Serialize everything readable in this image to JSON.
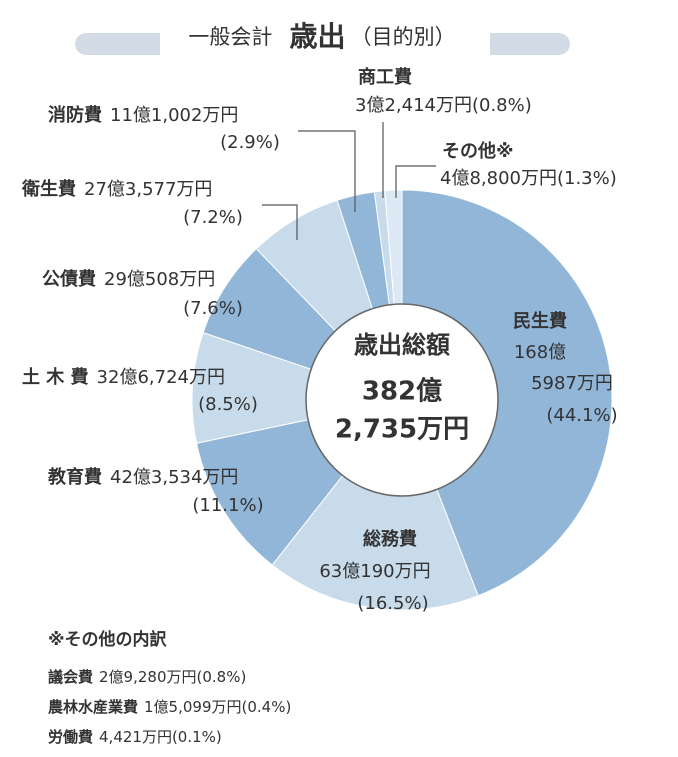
{
  "chart_data": {
    "type": "donut",
    "title": {
      "prefix": "一般会計",
      "main": "歳出",
      "suffix": "（目的別）"
    },
    "center": {
      "label": "歳出総額",
      "line1": "382億",
      "line2": "2,735万円"
    },
    "categories": [
      "民生費",
      "総務費",
      "教育費",
      "土 木 費",
      "公債費",
      "衛生費",
      "消防費",
      "商工費",
      "その他※"
    ],
    "amounts": [
      [
        "168億",
        "5987万円"
      ],
      [
        "63億190万円"
      ],
      [
        "42億3,534万円"
      ],
      [
        "32億6,724万円"
      ],
      [
        "29億508万円"
      ],
      [
        "27億3,577万円"
      ],
      [
        "11億1,002万円"
      ],
      [
        "3億2,414万円"
      ],
      [
        "4億8,800万円"
      ]
    ],
    "values": [
      44.1,
      16.5,
      11.1,
      8.5,
      7.6,
      7.2,
      2.9,
      0.8,
      1.3
    ],
    "value_labels": [
      "(44.1%)",
      "(16.5%)",
      "(11.1%)",
      "(8.5%)",
      "(7.6%)",
      "(7.2%)",
      "(2.9%)",
      "(0.8%)",
      "(1.3%)"
    ],
    "colors": [
      "#92b6d8",
      "#c8dbeb",
      "#92b6d8",
      "#c8dbeb",
      "#92b6d8",
      "#c8dbeb",
      "#92b6d8",
      "#c8dbeb",
      "#dce8f3"
    ],
    "footnote": {
      "title": "※その他の内訳",
      "items": [
        {
          "name": "議会費",
          "amount": "2億9,280万円(0.8%)"
        },
        {
          "name": "農林水産業費",
          "amount": "1億5,099万円(0.4%)"
        },
        {
          "name": "労働費",
          "amount": "4,421万円(0.1%)"
        }
      ]
    }
  }
}
